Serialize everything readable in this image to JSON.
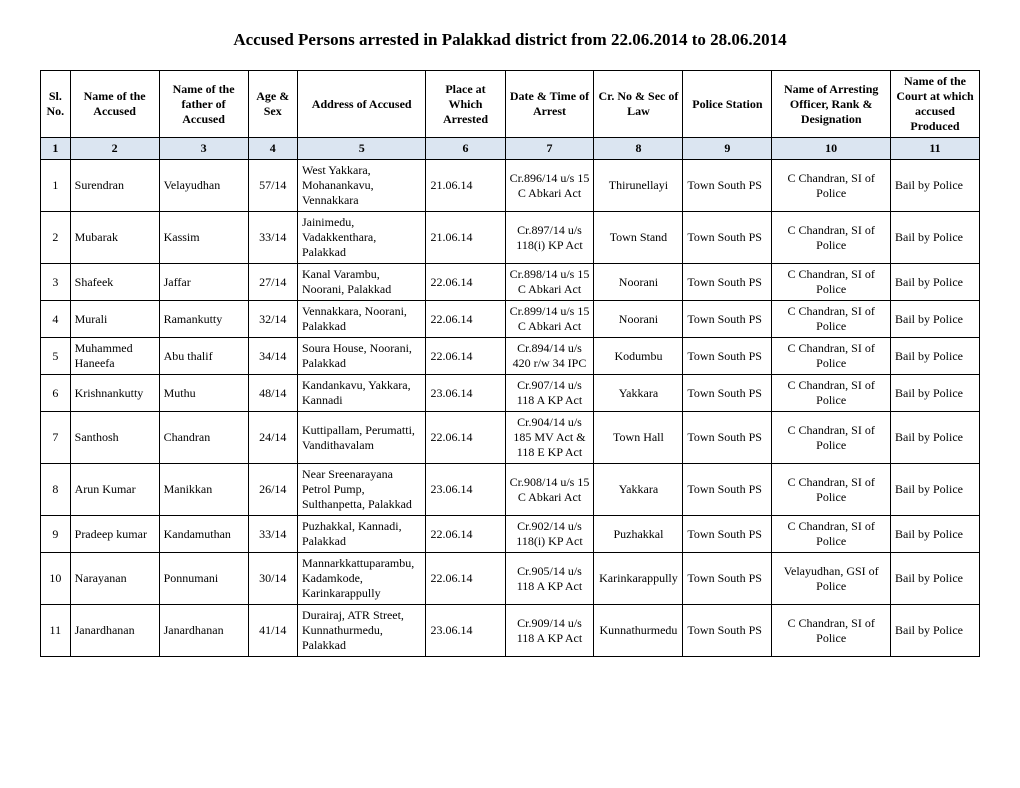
{
  "title": "Accused Persons arrested in  Palakkad district from 22.06.2014 to 28.06.2014",
  "headers": {
    "sl": "Sl. No.",
    "name": "Name of the Accused",
    "father": "Name of the father of Accused",
    "age": "Age & Sex",
    "address": "Address of Accused",
    "place": "Place at Which Arrested",
    "date": "Date & Time of Arrest",
    "law": "Cr. No & Sec of Law",
    "station": "Police Station",
    "officer": "Name of Arresting Officer, Rank & Designation",
    "court": "Name of the Court at which accused Produced"
  },
  "numrow": [
    "1",
    "2",
    "3",
    "4",
    "5",
    "6",
    "7",
    "8",
    "9",
    "10",
    "11"
  ],
  "rows": [
    {
      "sl": "1",
      "name": "Surendran",
      "father": "Velayudhan",
      "age": "57/14",
      "address": "West Yakkara, Mohanankavu, Vennakkara",
      "place": "21.06.14",
      "date": "Cr.896/14 u/s 15 C Abkari Act",
      "law": "Thirunellayi",
      "station": "Town South PS",
      "officer": "C Chandran, SI of Police",
      "court": "Bail by Police"
    },
    {
      "sl": "2",
      "name": "Mubarak",
      "father": "Kassim",
      "age": "33/14",
      "address": "Jainimedu, Vadakkenthara, Palakkad",
      "place": "21.06.14",
      "date": "Cr.897/14 u/s 118(i) KP Act",
      "law": "Town Stand",
      "station": "Town South PS",
      "officer": "C Chandran, SI of Police",
      "court": "Bail by Police"
    },
    {
      "sl": "3",
      "name": "Shafeek",
      "father": "Jaffar",
      "age": "27/14",
      "address": "Kanal Varambu, Noorani, Palakkad",
      "place": "22.06.14",
      "date": "Cr.898/14 u/s 15 C Abkari Act",
      "law": "Noorani",
      "station": "Town South PS",
      "officer": "C Chandran, SI of Police",
      "court": "Bail by Police"
    },
    {
      "sl": "4",
      "name": "Murali",
      "father": "Ramankutty",
      "age": "32/14",
      "address": "Vennakkara, Noorani, Palakkad",
      "place": "22.06.14",
      "date": "Cr.899/14 u/s 15 C Abkari Act",
      "law": "Noorani",
      "station": "Town South PS",
      "officer": "C Chandran, SI of Police",
      "court": "Bail by Police"
    },
    {
      "sl": "5",
      "name": "Muhammed Haneefa",
      "father": "Abu thalif",
      "age": "34/14",
      "address": "Soura House, Noorani, Palakkad",
      "place": "22.06.14",
      "date": "Cr.894/14 u/s 420 r/w 34 IPC",
      "law": "Kodumbu",
      "station": "Town South PS",
      "officer": "C Chandran, SI of Police",
      "court": "Bail by Police"
    },
    {
      "sl": "6",
      "name": "Krishnankutty",
      "father": "Muthu",
      "age": "48/14",
      "address": "Kandankavu, Yakkara, Kannadi",
      "place": "23.06.14",
      "date": "Cr.907/14 u/s 118 A KP Act",
      "law": "Yakkara",
      "station": "Town South PS",
      "officer": "C Chandran, SI of Police",
      "court": "Bail by Police"
    },
    {
      "sl": "7",
      "name": "Santhosh",
      "father": "Chandran",
      "age": "24/14",
      "address": "Kuttipallam, Perumatti, Vandithavalam",
      "place": "22.06.14",
      "date": "Cr.904/14 u/s 185 MV Act & 118 E KP Act",
      "law": "Town Hall",
      "station": "Town South PS",
      "officer": "C Chandran, SI of Police",
      "court": "Bail by Police"
    },
    {
      "sl": "8",
      "name": "Arun Kumar",
      "father": "Manikkan",
      "age": "26/14",
      "address": "Near Sreenarayana Petrol Pump, Sulthanpetta, Palakkad",
      "place": "23.06.14",
      "date": "Cr.908/14 u/s 15 C Abkari Act",
      "law": "Yakkara",
      "station": "Town South PS",
      "officer": "C Chandran, SI of Police",
      "court": "Bail by Police"
    },
    {
      "sl": "9",
      "name": "Pradeep kumar",
      "father": "Kandamuthan",
      "age": "33/14",
      "address": "Puzhakkal, Kannadi, Palakkad",
      "place": "22.06.14",
      "date": "Cr.902/14 u/s 118(i) KP Act",
      "law": "Puzhakkal",
      "station": "Town South PS",
      "officer": "C Chandran, SI of Police",
      "court": "Bail by Police"
    },
    {
      "sl": "10",
      "name": "Narayanan",
      "father": "Ponnumani",
      "age": "30/14",
      "address": "Mannarkkattuparambu, Kadamkode, Karinkarappully",
      "place": "22.06.14",
      "date": "Cr.905/14 u/s 118 A KP Act",
      "law": "Karinkarappully",
      "station": "Town South PS",
      "officer": "Velayudhan, GSI of Police",
      "court": "Bail by Police"
    },
    {
      "sl": "11",
      "name": "Janardhanan",
      "father": "Janardhanan",
      "age": "41/14",
      "address": "Durairaj, ATR Street, Kunnathurmedu, Palakkad",
      "place": "23.06.14",
      "date": "Cr.909/14 u/s 118 A KP Act",
      "law": "Kunnathurmedu",
      "station": "Town South PS",
      "officer": "C Chandran, SI of Police",
      "court": "Bail by Police"
    }
  ]
}
